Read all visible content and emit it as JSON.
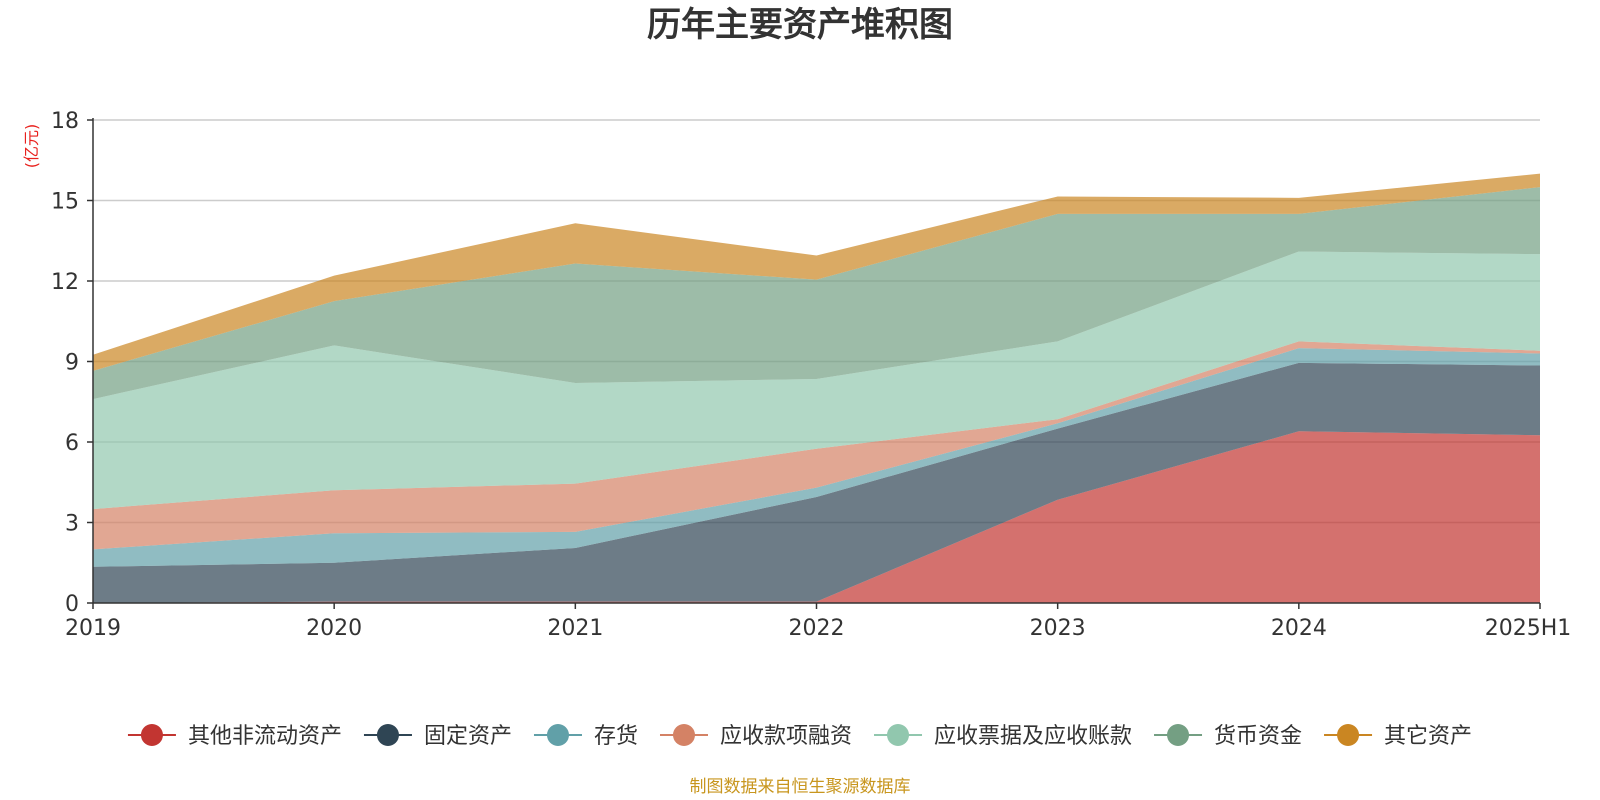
{
  "chart_data": {
    "type": "area",
    "stacked": true,
    "title": "历年主要资产堆积图",
    "ylabel": "(亿元)",
    "ylim": [
      0,
      18
    ],
    "yticks": [
      0,
      3,
      6,
      9,
      12,
      15,
      18
    ],
    "categories": [
      "2019",
      "2020",
      "2021",
      "2022",
      "2023",
      "2024",
      "2025H1"
    ],
    "grid": true,
    "legend_position": "bottom",
    "series": [
      {
        "name": "其他非流动资产",
        "color": "#c23531",
        "values": [
          0,
          0.05,
          0.05,
          0.05,
          3.85,
          6.4,
          6.25
        ]
      },
      {
        "name": "固定资产",
        "color": "#2f4554",
        "values": [
          1.35,
          1.45,
          2.0,
          3.9,
          2.65,
          2.55,
          2.6
        ]
      },
      {
        "name": "存货",
        "color": "#61a0a8",
        "values": [
          0.65,
          1.1,
          0.6,
          0.35,
          0.2,
          0.55,
          0.45
        ]
      },
      {
        "name": "应收款项融资",
        "color": "#d48265",
        "values": [
          1.5,
          1.6,
          1.8,
          1.45,
          0.15,
          0.25,
          0.1
        ]
      },
      {
        "name": "应收票据及应收账款",
        "color": "#91c7ae",
        "values": [
          4.1,
          5.4,
          3.75,
          2.6,
          2.9,
          3.35,
          3.6
        ]
      },
      {
        "name": "货币资金",
        "color": "#749f83",
        "values": [
          1.05,
          1.65,
          4.45,
          3.7,
          4.75,
          1.4,
          2.5
        ]
      },
      {
        "name": "其它资产",
        "color": "#ca8622",
        "values": [
          0.6,
          0.95,
          1.5,
          0.9,
          0.65,
          0.6,
          0.5
        ]
      }
    ]
  },
  "footer": {
    "source": "制图数据来自恒生聚源数据库"
  }
}
